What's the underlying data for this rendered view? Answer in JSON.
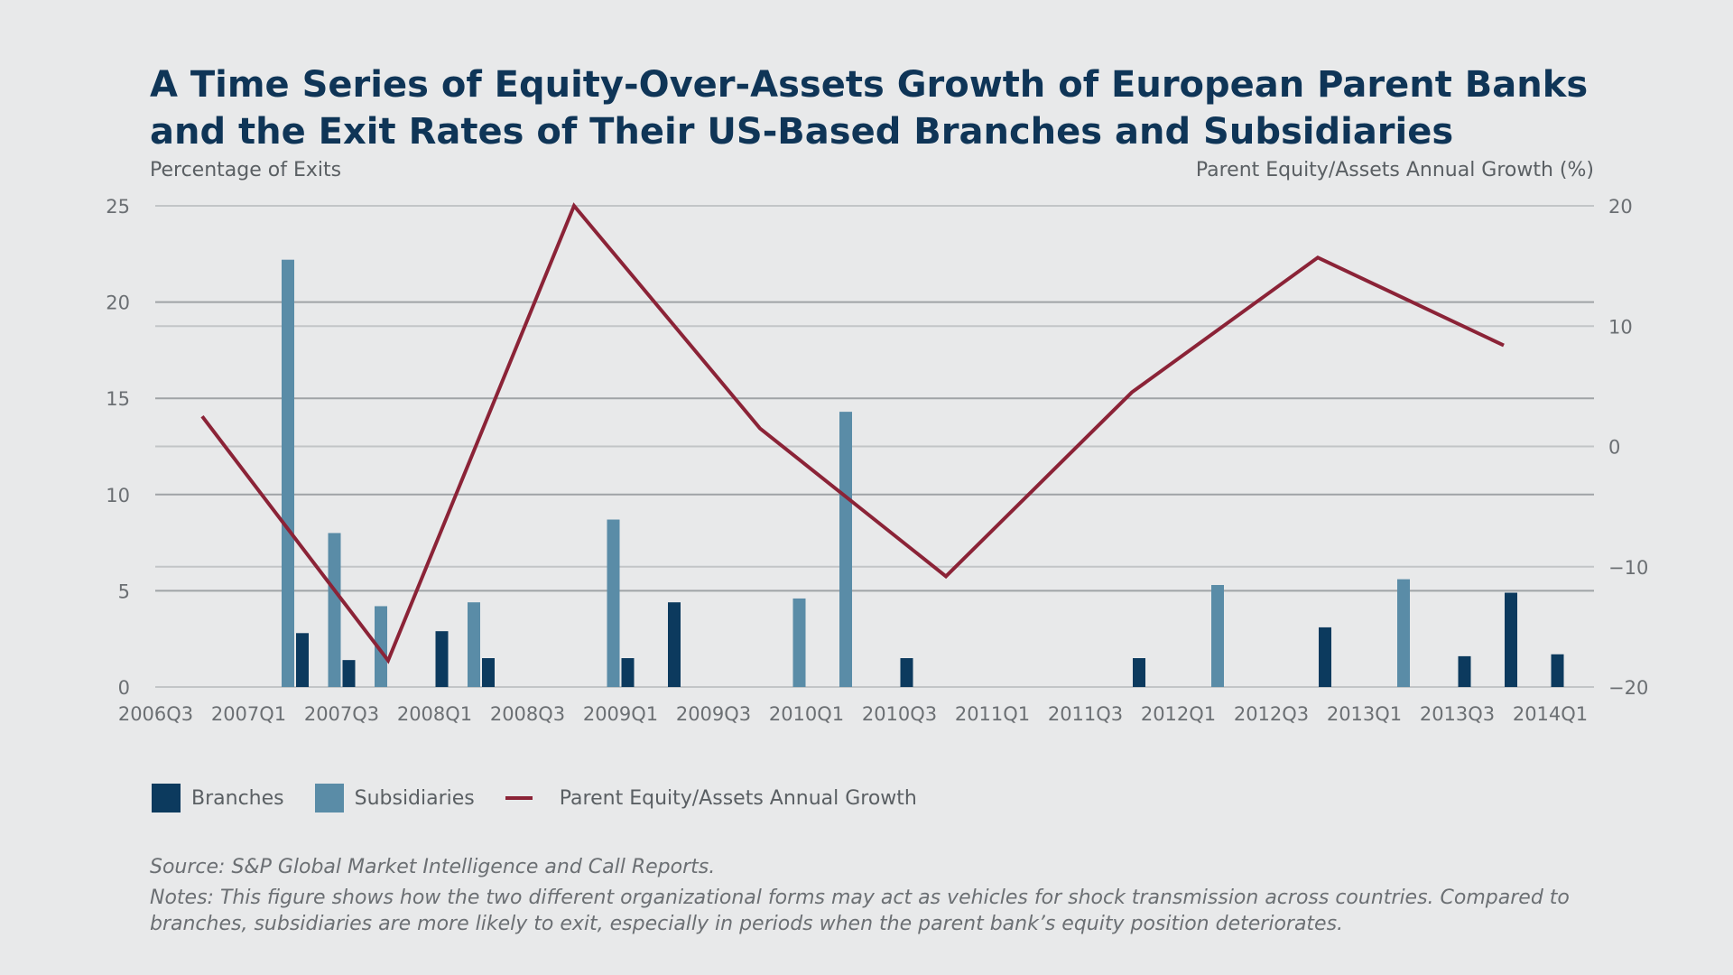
{
  "chart_data": {
    "type": "bar",
    "title": "A Time Series of Equity-Over-Assets Growth of European Parent Banks and the Exit Rates of Their US-Based Branches and Subsidiaries",
    "y_left_label": "Percentage of Exits",
    "y_right_label": "Parent Equity/Assets Annual Growth (%)",
    "categories": [
      "2006Q3",
      "2006Q4",
      "2007Q1",
      "2007Q2",
      "2007Q3",
      "2007Q4",
      "2008Q1",
      "2008Q2",
      "2008Q3",
      "2008Q4",
      "2009Q1",
      "2009Q2",
      "2009Q3",
      "2009Q4",
      "2010Q1",
      "2010Q2",
      "2010Q3",
      "2010Q4",
      "2011Q1",
      "2011Q2",
      "2011Q3",
      "2011Q4",
      "2012Q1",
      "2012Q2",
      "2012Q3",
      "2012Q4",
      "2013Q1",
      "2013Q2",
      "2013Q3",
      "2013Q4",
      "2014Q1"
    ],
    "x_tick_labels": [
      "2006Q3",
      "2007Q1",
      "2007Q3",
      "2008Q1",
      "2008Q3",
      "2009Q1",
      "2009Q3",
      "2010Q1",
      "2010Q3",
      "2011Q1",
      "2011Q3",
      "2012Q1",
      "2012Q3",
      "2013Q1",
      "2013Q3",
      "2014Q1"
    ],
    "ylim_left": [
      0,
      25
    ],
    "yticks_left": [
      0,
      5,
      10,
      15,
      20,
      25
    ],
    "ylim_right": [
      -20,
      20
    ],
    "yticks_right": [
      "−20",
      "−10",
      "0",
      "10",
      "20"
    ],
    "grid": true,
    "series": [
      {
        "name": "Branches",
        "kind": "bar",
        "axis": "left",
        "color": "#0c3a5e",
        "values": [
          0,
          0,
          0,
          2.8,
          1.4,
          0,
          2.9,
          1.5,
          0,
          0,
          1.5,
          4.4,
          0,
          0,
          0,
          0,
          1.5,
          0,
          0,
          0,
          0,
          1.5,
          0,
          0,
          0,
          3.1,
          0,
          0,
          1.6,
          4.9,
          1.7
        ]
      },
      {
        "name": "Subsidiaries",
        "kind": "bar",
        "axis": "left",
        "color": "#5a8ca7",
        "values": [
          0,
          0,
          0,
          22.2,
          8.0,
          4.2,
          0,
          4.4,
          0,
          0,
          8.7,
          0,
          0,
          0,
          4.6,
          14.3,
          0,
          0,
          0,
          0,
          0,
          0,
          0,
          5.3,
          0,
          0,
          0,
          5.6,
          0,
          0,
          0
        ]
      },
      {
        "name": "Parent Equity/Assets Annual Growth",
        "kind": "line",
        "axis": "right",
        "color": "#8b2337",
        "points": [
          [
            "2006Q4",
            2.5
          ],
          [
            "2007Q4",
            -17.8
          ],
          [
            "2008Q4",
            20.0
          ],
          [
            "2009Q4",
            1.5
          ],
          [
            "2010Q4",
            -10.8
          ],
          [
            "2011Q4",
            4.5
          ],
          [
            "2012Q4",
            15.7
          ],
          [
            "2013Q4",
            8.4
          ]
        ]
      }
    ]
  },
  "source_note": "Source: S&P Global Market Intelligence and Call Reports.",
  "notes": "Notes: This figure shows how the two different organizational forms may act as vehicles for shock transmission across countries. Compared to branches, subsidiaries are more likely to exit, especially in periods when the parent bank’s equity position deteriorates."
}
